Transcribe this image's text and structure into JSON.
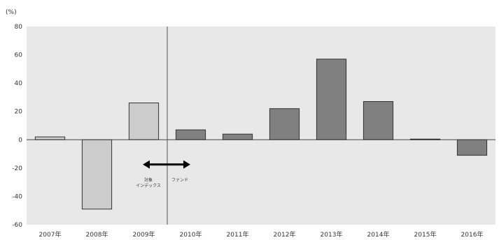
{
  "chart_data": {
    "type": "bar",
    "unit_label": "(%)",
    "categories": [
      "2007年",
      "2008年",
      "2009年",
      "2010年",
      "2011年",
      "2012年",
      "2013年",
      "2014年",
      "2015年",
      "2016年"
    ],
    "values": [
      2,
      -49,
      26,
      7,
      4,
      22,
      57,
      27,
      0.5,
      -11
    ],
    "bar_colors": [
      "#cccccc",
      "#cccccc",
      "#cccccc",
      "#808080",
      "#808080",
      "#808080",
      "#808080",
      "#808080",
      "#808080",
      "#808080"
    ],
    "ylim": [
      -60,
      80
    ],
    "yticks": [
      80,
      60,
      40,
      20,
      0,
      -20,
      -40,
      -60
    ],
    "grid": false,
    "plot_background": "#e8e8e8",
    "divider_after_category": "2009年",
    "annotations": {
      "left_line1": "対象",
      "left_line2": "インデックス",
      "right": "ファンド"
    }
  }
}
